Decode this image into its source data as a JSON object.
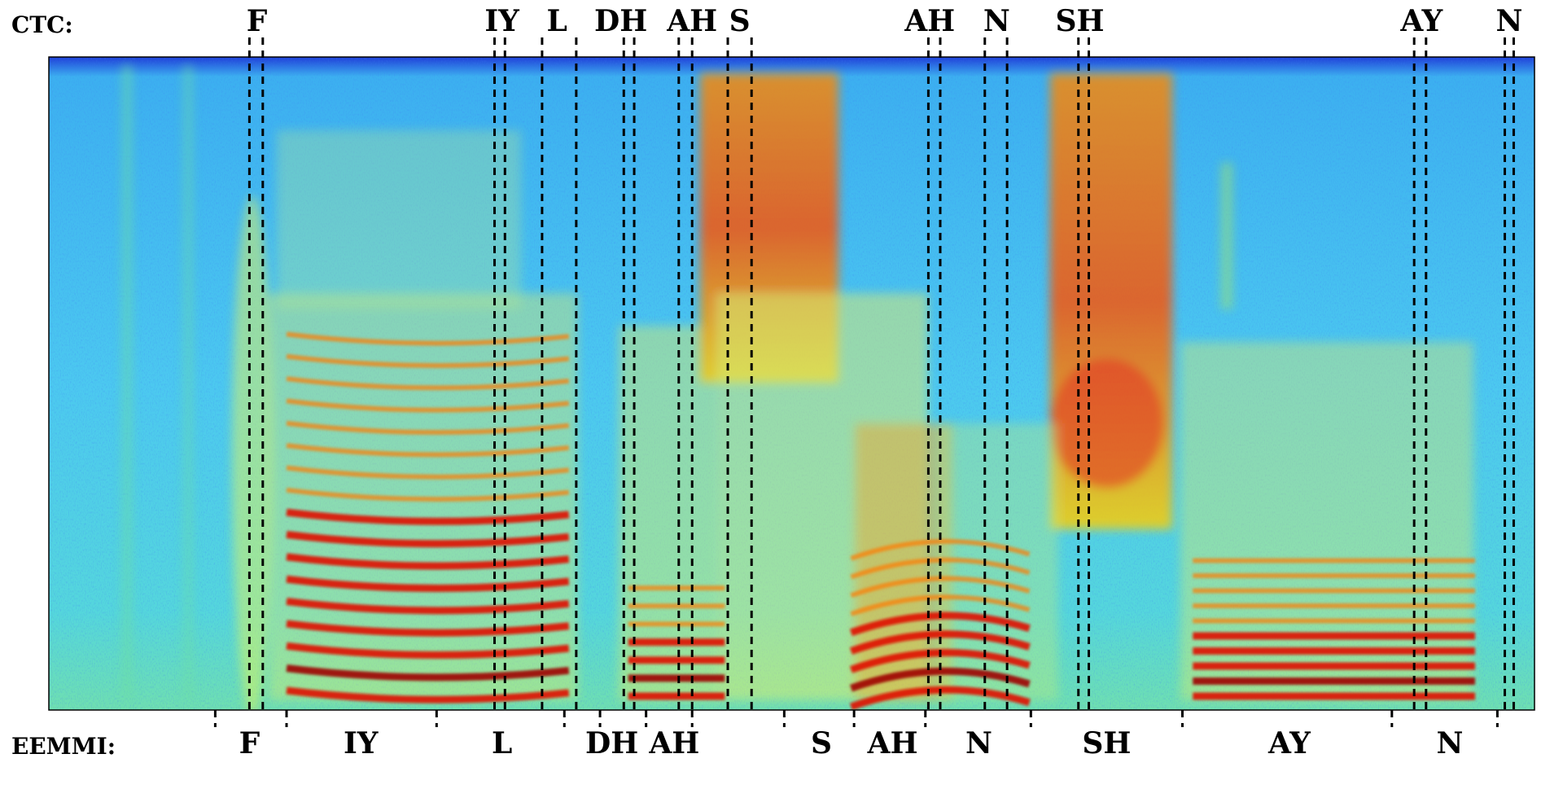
{
  "chart_data": {
    "type": "heatmap",
    "title": "",
    "xlabel": "",
    "ylabel": "",
    "colormap": [
      "#00008f",
      "#0000ff",
      "#00ffff",
      "#ffff00",
      "#ff0000",
      "#800000"
    ],
    "ctc": {
      "label": "CTC:",
      "phones": [
        {
          "text": "F",
          "x": 0.14
        },
        {
          "text": "IY",
          "x": 0.305
        },
        {
          "text": "L",
          "x": 0.342
        },
        {
          "text": "DH",
          "x": 0.385
        },
        {
          "text": "AH",
          "x": 0.433
        },
        {
          "text": "S",
          "x": 0.465
        },
        {
          "text": "AH",
          "x": 0.593
        },
        {
          "text": "N",
          "x": 0.638
        },
        {
          "text": "SH",
          "x": 0.694
        },
        {
          "text": "AY",
          "x": 0.924
        },
        {
          "text": "N",
          "x": 0.983
        }
      ],
      "boundaries": [
        0.135,
        0.144,
        0.3,
        0.307,
        0.332,
        0.355,
        0.387,
        0.394,
        0.424,
        0.433,
        0.457,
        0.473,
        0.592,
        0.6,
        0.63,
        0.645,
        0.693,
        0.7,
        0.919,
        0.927,
        0.98,
        0.986
      ]
    },
    "eemmi": {
      "label": "EEMMI:",
      "phones": [
        {
          "text": "F",
          "x": 0.135
        },
        {
          "text": "IY",
          "x": 0.21
        },
        {
          "text": "L",
          "x": 0.305
        },
        {
          "text": "DH",
          "x": 0.379
        },
        {
          "text": "AH",
          "x": 0.421
        },
        {
          "text": "S",
          "x": 0.52
        },
        {
          "text": "AH",
          "x": 0.568
        },
        {
          "text": "N",
          "x": 0.626
        },
        {
          "text": "SH",
          "x": 0.712
        },
        {
          "text": "AY",
          "x": 0.835
        },
        {
          "text": "N",
          "x": 0.943
        }
      ],
      "boundaries": [
        0.112,
        0.16,
        0.261,
        0.347,
        0.371,
        0.402,
        0.433,
        0.495,
        0.542,
        0.59,
        0.661,
        0.763,
        0.904,
        0.975
      ]
    }
  }
}
